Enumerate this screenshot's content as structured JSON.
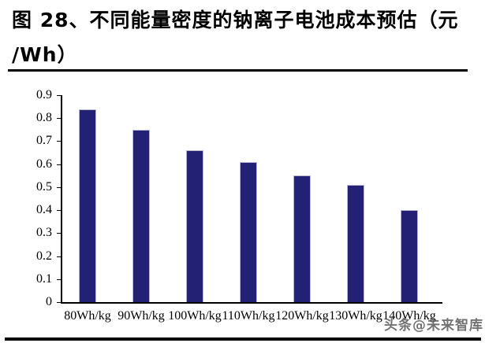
{
  "header": {
    "title_line1": "图 28、不同能量密度的钠离子电池成本预估（元",
    "title_line2": "/Wh）",
    "title_full": "图 28、不同能量密度的钠离子电池成本预估（元/Wh）"
  },
  "watermark": {
    "text": "头条@未来智库"
  },
  "chart_data": {
    "type": "bar",
    "title": "图 28、不同能量密度的钠离子电池成本预估（元/Wh）",
    "categories": [
      "80Wh/kg",
      "90Wh/kg",
      "100Wh/kg",
      "110Wh/kg",
      "120Wh/kg",
      "130Wh/kg",
      "140Wh/kg"
    ],
    "values": [
      0.84,
      0.75,
      0.66,
      0.61,
      0.55,
      0.51,
      0.4
    ],
    "xlabel": "",
    "ylabel": "",
    "ylim": [
      0,
      0.9
    ],
    "ytick_labels": [
      "0",
      "0.1",
      "0.2",
      "0.3",
      "0.4",
      "0.5",
      "0.6",
      "0.7",
      "0.8",
      "0.9"
    ],
    "bar_color": "#232173",
    "bar_border_color": "#b9b7d9",
    "axis_color": "#000000",
    "grid": "off",
    "legend": "none"
  }
}
